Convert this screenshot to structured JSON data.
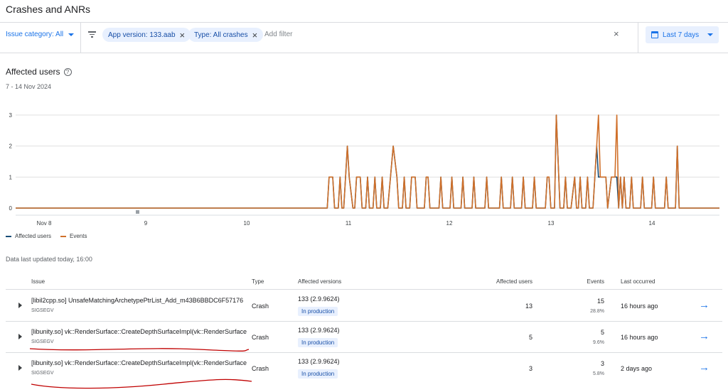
{
  "page": {
    "title": "Crashes and ANRs"
  },
  "filters": {
    "issue_category": "Issue category: All",
    "chips": [
      {
        "label": "App version: 133.aab"
      },
      {
        "label": "Type: All crashes"
      }
    ],
    "add_filter_placeholder": "Add filter",
    "date_range_button": "Last 7 days"
  },
  "section": {
    "title": "Affected users",
    "date_range": "7 - 14 Nov 2024",
    "data_updated": "Data last updated today, 16:00"
  },
  "colors": {
    "accent": "#1a73e8",
    "affected_users": "#174d77",
    "events": "#d0702a"
  },
  "chart_data": {
    "type": "line",
    "x_tick_labels": [
      "Nov 8",
      "9",
      "10",
      "11",
      "12",
      "13",
      "14"
    ],
    "y_tick_labels": [
      "0",
      "1",
      "2",
      "3"
    ],
    "ylim": [
      0,
      3
    ],
    "grid": true,
    "legend_position": "bottom-left",
    "x_unit": "hours since first point",
    "series": [
      {
        "name": "Affected users",
        "color": "#174d77",
        "points": [
          [
            0,
            0
          ],
          [
            12,
            0
          ],
          [
            24,
            0
          ],
          [
            36,
            0
          ],
          [
            48,
            0
          ],
          [
            60,
            0
          ],
          [
            72,
            0
          ],
          [
            84,
            0
          ],
          [
            96,
            0
          ],
          [
            108,
            0
          ],
          [
            120,
            0
          ],
          [
            132,
            0
          ],
          [
            144,
            0
          ],
          [
            156,
            0
          ],
          [
            168,
            0
          ],
          [
            170,
            0
          ],
          [
            171,
            1
          ],
          [
            173,
            1
          ],
          [
            174,
            0
          ],
          [
            176,
            0
          ],
          [
            177,
            1
          ],
          [
            178,
            0
          ],
          [
            179,
            0
          ],
          [
            181,
            2
          ],
          [
            182,
            1
          ],
          [
            184,
            0
          ],
          [
            185,
            0
          ],
          [
            186,
            1
          ],
          [
            188,
            1
          ],
          [
            189,
            0
          ],
          [
            191,
            0
          ],
          [
            192,
            1
          ],
          [
            193,
            0
          ],
          [
            195,
            0
          ],
          [
            196,
            1
          ],
          [
            197,
            0
          ],
          [
            199,
            0
          ],
          [
            200,
            1
          ],
          [
            201,
            0
          ],
          [
            203,
            0
          ],
          [
            206,
            2
          ],
          [
            208,
            1
          ],
          [
            209,
            0
          ],
          [
            211,
            0
          ],
          [
            212,
            1
          ],
          [
            213,
            0
          ],
          [
            215,
            0
          ],
          [
            216,
            1
          ],
          [
            218,
            1
          ],
          [
            219,
            0
          ],
          [
            223,
            0
          ],
          [
            224,
            1
          ],
          [
            225,
            1
          ],
          [
            226,
            0
          ],
          [
            231,
            0
          ],
          [
            232,
            1
          ],
          [
            233,
            0
          ],
          [
            237,
            0
          ],
          [
            238,
            1
          ],
          [
            239,
            0
          ],
          [
            243,
            0
          ],
          [
            244,
            1
          ],
          [
            245,
            0
          ],
          [
            249,
            0
          ],
          [
            250,
            1
          ],
          [
            251,
            0
          ],
          [
            256,
            0
          ],
          [
            257,
            1
          ],
          [
            258,
            0
          ],
          [
            264,
            0
          ],
          [
            265,
            1
          ],
          [
            266,
            0
          ],
          [
            270,
            0
          ],
          [
            271,
            1
          ],
          [
            272,
            0
          ],
          [
            276,
            0
          ],
          [
            277,
            1
          ],
          [
            278,
            0
          ],
          [
            282,
            0
          ],
          [
            283,
            1
          ],
          [
            284,
            0
          ],
          [
            289,
            0
          ],
          [
            290,
            1
          ],
          [
            291,
            1
          ],
          [
            292,
            0
          ],
          [
            294,
            0
          ],
          [
            295,
            3
          ],
          [
            297,
            0
          ],
          [
            299,
            0
          ],
          [
            300,
            1
          ],
          [
            301,
            0
          ],
          [
            303,
            0
          ],
          [
            305,
            1
          ],
          [
            306,
            0
          ],
          [
            307,
            0
          ],
          [
            308,
            1
          ],
          [
            309,
            0
          ],
          [
            311,
            0
          ],
          [
            312,
            1
          ],
          [
            313,
            0
          ],
          [
            315,
            0
          ],
          [
            317,
            2
          ],
          [
            318,
            1
          ],
          [
            322,
            1
          ],
          [
            323,
            0
          ],
          [
            325,
            1
          ],
          [
            328,
            1
          ],
          [
            329,
            0
          ],
          [
            330,
            1
          ],
          [
            331,
            0
          ],
          [
            332,
            1
          ],
          [
            333,
            0
          ],
          [
            335,
            0
          ],
          [
            336,
            1
          ],
          [
            337,
            0
          ],
          [
            341,
            0
          ],
          [
            342,
            1
          ],
          [
            343,
            0
          ],
          [
            347,
            0
          ],
          [
            348,
            1
          ],
          [
            349,
            0
          ],
          [
            354,
            0
          ],
          [
            355,
            1
          ],
          [
            356,
            0
          ],
          [
            360,
            0
          ],
          [
            361,
            2
          ],
          [
            362,
            0
          ],
          [
            372,
            0
          ],
          [
            384,
            0
          ]
        ]
      },
      {
        "name": "Events",
        "color": "#d0702a",
        "points": [
          [
            0,
            0
          ],
          [
            12,
            0
          ],
          [
            24,
            0
          ],
          [
            36,
            0
          ],
          [
            48,
            0
          ],
          [
            60,
            0
          ],
          [
            72,
            0
          ],
          [
            84,
            0
          ],
          [
            96,
            0
          ],
          [
            108,
            0
          ],
          [
            120,
            0
          ],
          [
            132,
            0
          ],
          [
            144,
            0
          ],
          [
            156,
            0
          ],
          [
            168,
            0
          ],
          [
            170,
            0
          ],
          [
            171,
            1
          ],
          [
            173,
            1
          ],
          [
            174,
            0
          ],
          [
            176,
            0
          ],
          [
            177,
            1
          ],
          [
            178,
            0
          ],
          [
            179,
            0
          ],
          [
            181,
            2
          ],
          [
            182,
            1
          ],
          [
            184,
            0
          ],
          [
            185,
            0
          ],
          [
            186,
            1
          ],
          [
            188,
            1
          ],
          [
            189,
            0
          ],
          [
            191,
            0
          ],
          [
            192,
            1
          ],
          [
            193,
            0
          ],
          [
            195,
            0
          ],
          [
            196,
            1
          ],
          [
            197,
            0
          ],
          [
            199,
            0
          ],
          [
            200,
            1
          ],
          [
            201,
            0
          ],
          [
            203,
            0
          ],
          [
            206,
            2
          ],
          [
            208,
            1
          ],
          [
            209,
            0
          ],
          [
            211,
            0
          ],
          [
            212,
            1
          ],
          [
            213,
            0
          ],
          [
            215,
            0
          ],
          [
            216,
            1
          ],
          [
            218,
            1
          ],
          [
            219,
            0
          ],
          [
            223,
            0
          ],
          [
            224,
            1
          ],
          [
            225,
            1
          ],
          [
            226,
            0
          ],
          [
            231,
            0
          ],
          [
            232,
            1
          ],
          [
            233,
            0
          ],
          [
            237,
            0
          ],
          [
            238,
            1
          ],
          [
            239,
            0
          ],
          [
            243,
            0
          ],
          [
            244,
            1
          ],
          [
            245,
            0
          ],
          [
            249,
            0
          ],
          [
            250,
            1
          ],
          [
            251,
            0
          ],
          [
            256,
            0
          ],
          [
            257,
            1
          ],
          [
            258,
            0
          ],
          [
            264,
            0
          ],
          [
            265,
            1
          ],
          [
            266,
            0
          ],
          [
            270,
            0
          ],
          [
            271,
            1
          ],
          [
            272,
            0
          ],
          [
            276,
            0
          ],
          [
            277,
            1
          ],
          [
            278,
            0
          ],
          [
            282,
            0
          ],
          [
            283,
            1
          ],
          [
            284,
            0
          ],
          [
            289,
            0
          ],
          [
            290,
            1
          ],
          [
            291,
            1
          ],
          [
            292,
            0
          ],
          [
            294,
            0
          ],
          [
            295,
            3
          ],
          [
            297,
            0
          ],
          [
            299,
            0
          ],
          [
            300,
            1
          ],
          [
            301,
            0
          ],
          [
            303,
            0
          ],
          [
            305,
            1
          ],
          [
            306,
            0
          ],
          [
            307,
            0
          ],
          [
            308,
            1
          ],
          [
            309,
            0
          ],
          [
            311,
            0
          ],
          [
            312,
            1
          ],
          [
            313,
            0
          ],
          [
            315,
            0
          ],
          [
            317,
            2
          ],
          [
            318,
            3
          ],
          [
            319,
            1
          ],
          [
            322,
            1
          ],
          [
            323,
            0
          ],
          [
            325,
            1
          ],
          [
            327,
            1
          ],
          [
            328,
            3
          ],
          [
            329,
            0
          ],
          [
            330,
            1
          ],
          [
            331,
            0
          ],
          [
            332,
            1
          ],
          [
            333,
            0
          ],
          [
            335,
            0
          ],
          [
            336,
            1
          ],
          [
            337,
            0
          ],
          [
            341,
            0
          ],
          [
            342,
            1
          ],
          [
            343,
            0
          ],
          [
            347,
            0
          ],
          [
            348,
            1
          ],
          [
            349,
            0
          ],
          [
            354,
            0
          ],
          [
            355,
            1
          ],
          [
            356,
            0
          ],
          [
            360,
            0
          ],
          [
            361,
            2
          ],
          [
            362,
            0
          ],
          [
            372,
            0
          ],
          [
            384,
            0
          ]
        ]
      }
    ]
  },
  "table": {
    "headers": {
      "issue": "Issue",
      "type": "Type",
      "versions": "Affected versions",
      "users": "Affected users",
      "events": "Events",
      "last": "Last occurred"
    },
    "rows": [
      {
        "issue": "[libil2cpp.so] UnsafeMatchingArchetypePtrList_Add_m43B6BBDC6F57176",
        "signal": "SIGSEGV",
        "type": "Crash",
        "version": "133 (2.9.9624)",
        "badge": "In production",
        "users": "13",
        "events": "15",
        "pct": "28.8%",
        "last": "16 hours ago"
      },
      {
        "issue": "[libunity.so] vk::RenderSurface::CreateDepthSurfaceImpl(vk::RenderSurface",
        "signal": "SIGSEGV",
        "type": "Crash",
        "version": "133 (2.9.9624)",
        "badge": "In production",
        "users": "5",
        "events": "5",
        "pct": "9.6%",
        "last": "16 hours ago"
      },
      {
        "issue": "[libunity.so] vk::RenderSurface::CreateDepthSurfaceImpl(vk::RenderSurface",
        "signal": "SIGSEGV",
        "type": "Crash",
        "version": "133 (2.9.9624)",
        "badge": "In production",
        "users": "3",
        "events": "3",
        "pct": "5.8%",
        "last": "2 days ago"
      }
    ]
  }
}
